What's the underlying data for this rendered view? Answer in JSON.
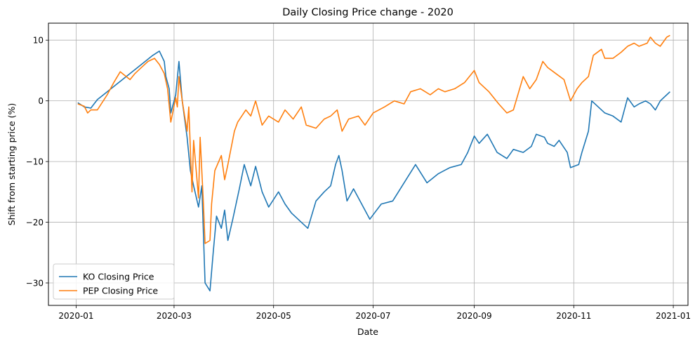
{
  "chart_data": {
    "type": "line",
    "title": "Daily Closing Price change - 2020",
    "xlabel": "Date",
    "ylabel": "Shift from starting price (%)",
    "x_range": [
      "2019-12-15",
      "2021-01-10"
    ],
    "ylim": [
      -33.7,
      12.8
    ],
    "x_ticks": [
      "2020-01-01",
      "2020-03-01",
      "2020-05-01",
      "2020-07-01",
      "2020-09-01",
      "2020-11-01",
      "2021-01-01"
    ],
    "x_tick_labels": [
      "2020-01",
      "2020-03",
      "2020-05",
      "2020-07",
      "2020-09",
      "2020-11",
      "2021-01"
    ],
    "y_ticks": [
      10,
      0,
      -10,
      -20,
      -30
    ],
    "grid": true,
    "legend_position": "lower-left",
    "series": [
      {
        "name": "KO Closing Price",
        "color": "#1f77b4",
        "points": [
          [
            "2020-01-02",
            -0.3
          ],
          [
            "2020-01-06",
            -1.0
          ],
          [
            "2020-01-10",
            -1.2
          ],
          [
            "2020-01-14",
            0.2
          ],
          [
            "2020-01-20",
            1.5
          ],
          [
            "2020-01-27",
            3.0
          ],
          [
            "2020-02-03",
            4.5
          ],
          [
            "2020-02-10",
            6.0
          ],
          [
            "2020-02-17",
            7.5
          ],
          [
            "2020-02-21",
            8.2
          ],
          [
            "2020-02-24",
            6.5
          ],
          [
            "2020-02-25",
            4.0
          ],
          [
            "2020-02-27",
            2.0
          ],
          [
            "2020-02-28",
            -2.0
          ],
          [
            "2020-03-02",
            1.0
          ],
          [
            "2020-03-04",
            6.5
          ],
          [
            "2020-03-06",
            0.0
          ],
          [
            "2020-03-09",
            -6.0
          ],
          [
            "2020-03-11",
            -11.5
          ],
          [
            "2020-03-13",
            -14.0
          ],
          [
            "2020-03-16",
            -17.5
          ],
          [
            "2020-03-18",
            -14.0
          ],
          [
            "2020-03-20",
            -30.0
          ],
          [
            "2020-03-23",
            -31.3
          ],
          [
            "2020-03-25",
            -25.0
          ],
          [
            "2020-03-27",
            -19.0
          ],
          [
            "2020-03-30",
            -21.0
          ],
          [
            "2020-04-01",
            -18.0
          ],
          [
            "2020-04-03",
            -23.0
          ],
          [
            "2020-04-06",
            -19.5
          ],
          [
            "2020-04-10",
            -14.5
          ],
          [
            "2020-04-13",
            -10.5
          ],
          [
            "2020-04-17",
            -14.0
          ],
          [
            "2020-04-20",
            -10.8
          ],
          [
            "2020-04-24",
            -15.0
          ],
          [
            "2020-04-28",
            -17.5
          ],
          [
            "2020-05-04",
            -15.0
          ],
          [
            "2020-05-08",
            -17.0
          ],
          [
            "2020-05-12",
            -18.5
          ],
          [
            "2020-05-18",
            -20.0
          ],
          [
            "2020-05-22",
            -21.0
          ],
          [
            "2020-05-27",
            -16.5
          ],
          [
            "2020-06-01",
            -15.0
          ],
          [
            "2020-06-05",
            -14.0
          ],
          [
            "2020-06-08",
            -10.5
          ],
          [
            "2020-06-10",
            -9.0
          ],
          [
            "2020-06-12",
            -11.5
          ],
          [
            "2020-06-15",
            -16.5
          ],
          [
            "2020-06-19",
            -14.5
          ],
          [
            "2020-06-24",
            -17.0
          ],
          [
            "2020-06-29",
            -19.5
          ],
          [
            "2020-07-06",
            -17.0
          ],
          [
            "2020-07-13",
            -16.5
          ],
          [
            "2020-07-20",
            -13.5
          ],
          [
            "2020-07-27",
            -10.5
          ],
          [
            "2020-08-03",
            -13.5
          ],
          [
            "2020-08-10",
            -12.0
          ],
          [
            "2020-08-17",
            -11.0
          ],
          [
            "2020-08-24",
            -10.5
          ],
          [
            "2020-08-28",
            -8.5
          ],
          [
            "2020-09-01",
            -5.8
          ],
          [
            "2020-09-04",
            -7.0
          ],
          [
            "2020-09-09",
            -5.5
          ],
          [
            "2020-09-15",
            -8.5
          ],
          [
            "2020-09-21",
            -9.5
          ],
          [
            "2020-09-25",
            -8.0
          ],
          [
            "2020-10-01",
            -8.5
          ],
          [
            "2020-10-06",
            -7.5
          ],
          [
            "2020-10-09",
            -5.5
          ],
          [
            "2020-10-14",
            -6.0
          ],
          [
            "2020-10-16",
            -7.0
          ],
          [
            "2020-10-20",
            -7.5
          ],
          [
            "2020-10-23",
            -6.5
          ],
          [
            "2020-10-28",
            -8.5
          ],
          [
            "2020-10-30",
            -11.0
          ],
          [
            "2020-11-04",
            -10.5
          ],
          [
            "2020-11-06",
            -8.5
          ],
          [
            "2020-11-10",
            -5.0
          ],
          [
            "2020-11-12",
            0.0
          ],
          [
            "2020-11-16",
            -1.0
          ],
          [
            "2020-11-20",
            -2.0
          ],
          [
            "2020-11-25",
            -2.5
          ],
          [
            "2020-11-30",
            -3.5
          ],
          [
            "2020-12-04",
            0.5
          ],
          [
            "2020-12-08",
            -1.0
          ],
          [
            "2020-12-11",
            -0.5
          ],
          [
            "2020-12-15",
            0.0
          ],
          [
            "2020-12-18",
            -0.5
          ],
          [
            "2020-12-21",
            -1.5
          ],
          [
            "2020-12-24",
            0.0
          ],
          [
            "2020-12-28",
            1.0
          ],
          [
            "2020-12-30",
            1.5
          ]
        ]
      },
      {
        "name": "PEP Closing Price",
        "color": "#ff7f0e",
        "points": [
          [
            "2020-01-02",
            -0.5
          ],
          [
            "2020-01-06",
            -0.9
          ],
          [
            "2020-01-08",
            -2.0
          ],
          [
            "2020-01-10",
            -1.5
          ],
          [
            "2020-01-14",
            -1.5
          ],
          [
            "2020-01-20",
            1.0
          ],
          [
            "2020-01-24",
            3.0
          ],
          [
            "2020-01-28",
            4.8
          ],
          [
            "2020-02-03",
            3.5
          ],
          [
            "2020-02-06",
            4.5
          ],
          [
            "2020-02-10",
            5.5
          ],
          [
            "2020-02-14",
            6.5
          ],
          [
            "2020-02-18",
            7.0
          ],
          [
            "2020-02-21",
            6.0
          ],
          [
            "2020-02-24",
            4.5
          ],
          [
            "2020-02-26",
            2.0
          ],
          [
            "2020-02-28",
            -3.5
          ],
          [
            "2020-03-02",
            0.5
          ],
          [
            "2020-03-03",
            -1.0
          ],
          [
            "2020-03-04",
            4.0
          ],
          [
            "2020-03-06",
            0.0
          ],
          [
            "2020-03-09",
            -5.0
          ],
          [
            "2020-03-10",
            -1.0
          ],
          [
            "2020-03-12",
            -15.0
          ],
          [
            "2020-03-13",
            -6.5
          ],
          [
            "2020-03-16",
            -16.0
          ],
          [
            "2020-03-17",
            -6.0
          ],
          [
            "2020-03-19",
            -17.0
          ],
          [
            "2020-03-20",
            -23.5
          ],
          [
            "2020-03-23",
            -23.0
          ],
          [
            "2020-03-24",
            -17.0
          ],
          [
            "2020-03-26",
            -11.5
          ],
          [
            "2020-03-30",
            -9.0
          ],
          [
            "2020-04-01",
            -13.0
          ],
          [
            "2020-04-03",
            -10.5
          ],
          [
            "2020-04-07",
            -5.0
          ],
          [
            "2020-04-09",
            -3.5
          ],
          [
            "2020-04-14",
            -1.5
          ],
          [
            "2020-04-17",
            -2.5
          ],
          [
            "2020-04-20",
            0.0
          ],
          [
            "2020-04-24",
            -4.0
          ],
          [
            "2020-04-28",
            -2.5
          ],
          [
            "2020-05-04",
            -3.5
          ],
          [
            "2020-05-08",
            -1.5
          ],
          [
            "2020-05-13",
            -3.0
          ],
          [
            "2020-05-18",
            -1.0
          ],
          [
            "2020-05-21",
            -4.0
          ],
          [
            "2020-05-27",
            -4.5
          ],
          [
            "2020-06-01",
            -3.0
          ],
          [
            "2020-06-05",
            -2.5
          ],
          [
            "2020-06-09",
            -1.5
          ],
          [
            "2020-06-12",
            -5.0
          ],
          [
            "2020-06-16",
            -3.0
          ],
          [
            "2020-06-22",
            -2.5
          ],
          [
            "2020-06-26",
            -4.0
          ],
          [
            "2020-07-01",
            -2.0
          ],
          [
            "2020-07-08",
            -1.0
          ],
          [
            "2020-07-14",
            0.0
          ],
          [
            "2020-07-20",
            -0.5
          ],
          [
            "2020-07-24",
            1.5
          ],
          [
            "2020-07-30",
            2.0
          ],
          [
            "2020-08-05",
            1.0
          ],
          [
            "2020-08-10",
            2.0
          ],
          [
            "2020-08-14",
            1.5
          ],
          [
            "2020-08-20",
            2.0
          ],
          [
            "2020-08-26",
            3.0
          ],
          [
            "2020-09-01",
            5.0
          ],
          [
            "2020-09-04",
            3.0
          ],
          [
            "2020-09-10",
            1.5
          ],
          [
            "2020-09-16",
            -0.5
          ],
          [
            "2020-09-21",
            -2.0
          ],
          [
            "2020-09-25",
            -1.5
          ],
          [
            "2020-10-01",
            4.0
          ],
          [
            "2020-10-05",
            2.0
          ],
          [
            "2020-10-09",
            3.5
          ],
          [
            "2020-10-13",
            6.5
          ],
          [
            "2020-10-16",
            5.5
          ],
          [
            "2020-10-21",
            4.5
          ],
          [
            "2020-10-26",
            3.5
          ],
          [
            "2020-10-30",
            0.0
          ],
          [
            "2020-11-03",
            2.0
          ],
          [
            "2020-11-06",
            3.0
          ],
          [
            "2020-11-10",
            4.0
          ],
          [
            "2020-11-13",
            7.5
          ],
          [
            "2020-11-18",
            8.5
          ],
          [
            "2020-11-20",
            7.0
          ],
          [
            "2020-11-25",
            7.0
          ],
          [
            "2020-11-30",
            8.0
          ],
          [
            "2020-12-04",
            9.0
          ],
          [
            "2020-12-08",
            9.5
          ],
          [
            "2020-12-11",
            9.0
          ],
          [
            "2020-12-16",
            9.5
          ],
          [
            "2020-12-18",
            10.5
          ],
          [
            "2020-12-21",
            9.5
          ],
          [
            "2020-12-24",
            9.0
          ],
          [
            "2020-12-28",
            10.5
          ],
          [
            "2020-12-30",
            10.8
          ]
        ]
      }
    ]
  }
}
